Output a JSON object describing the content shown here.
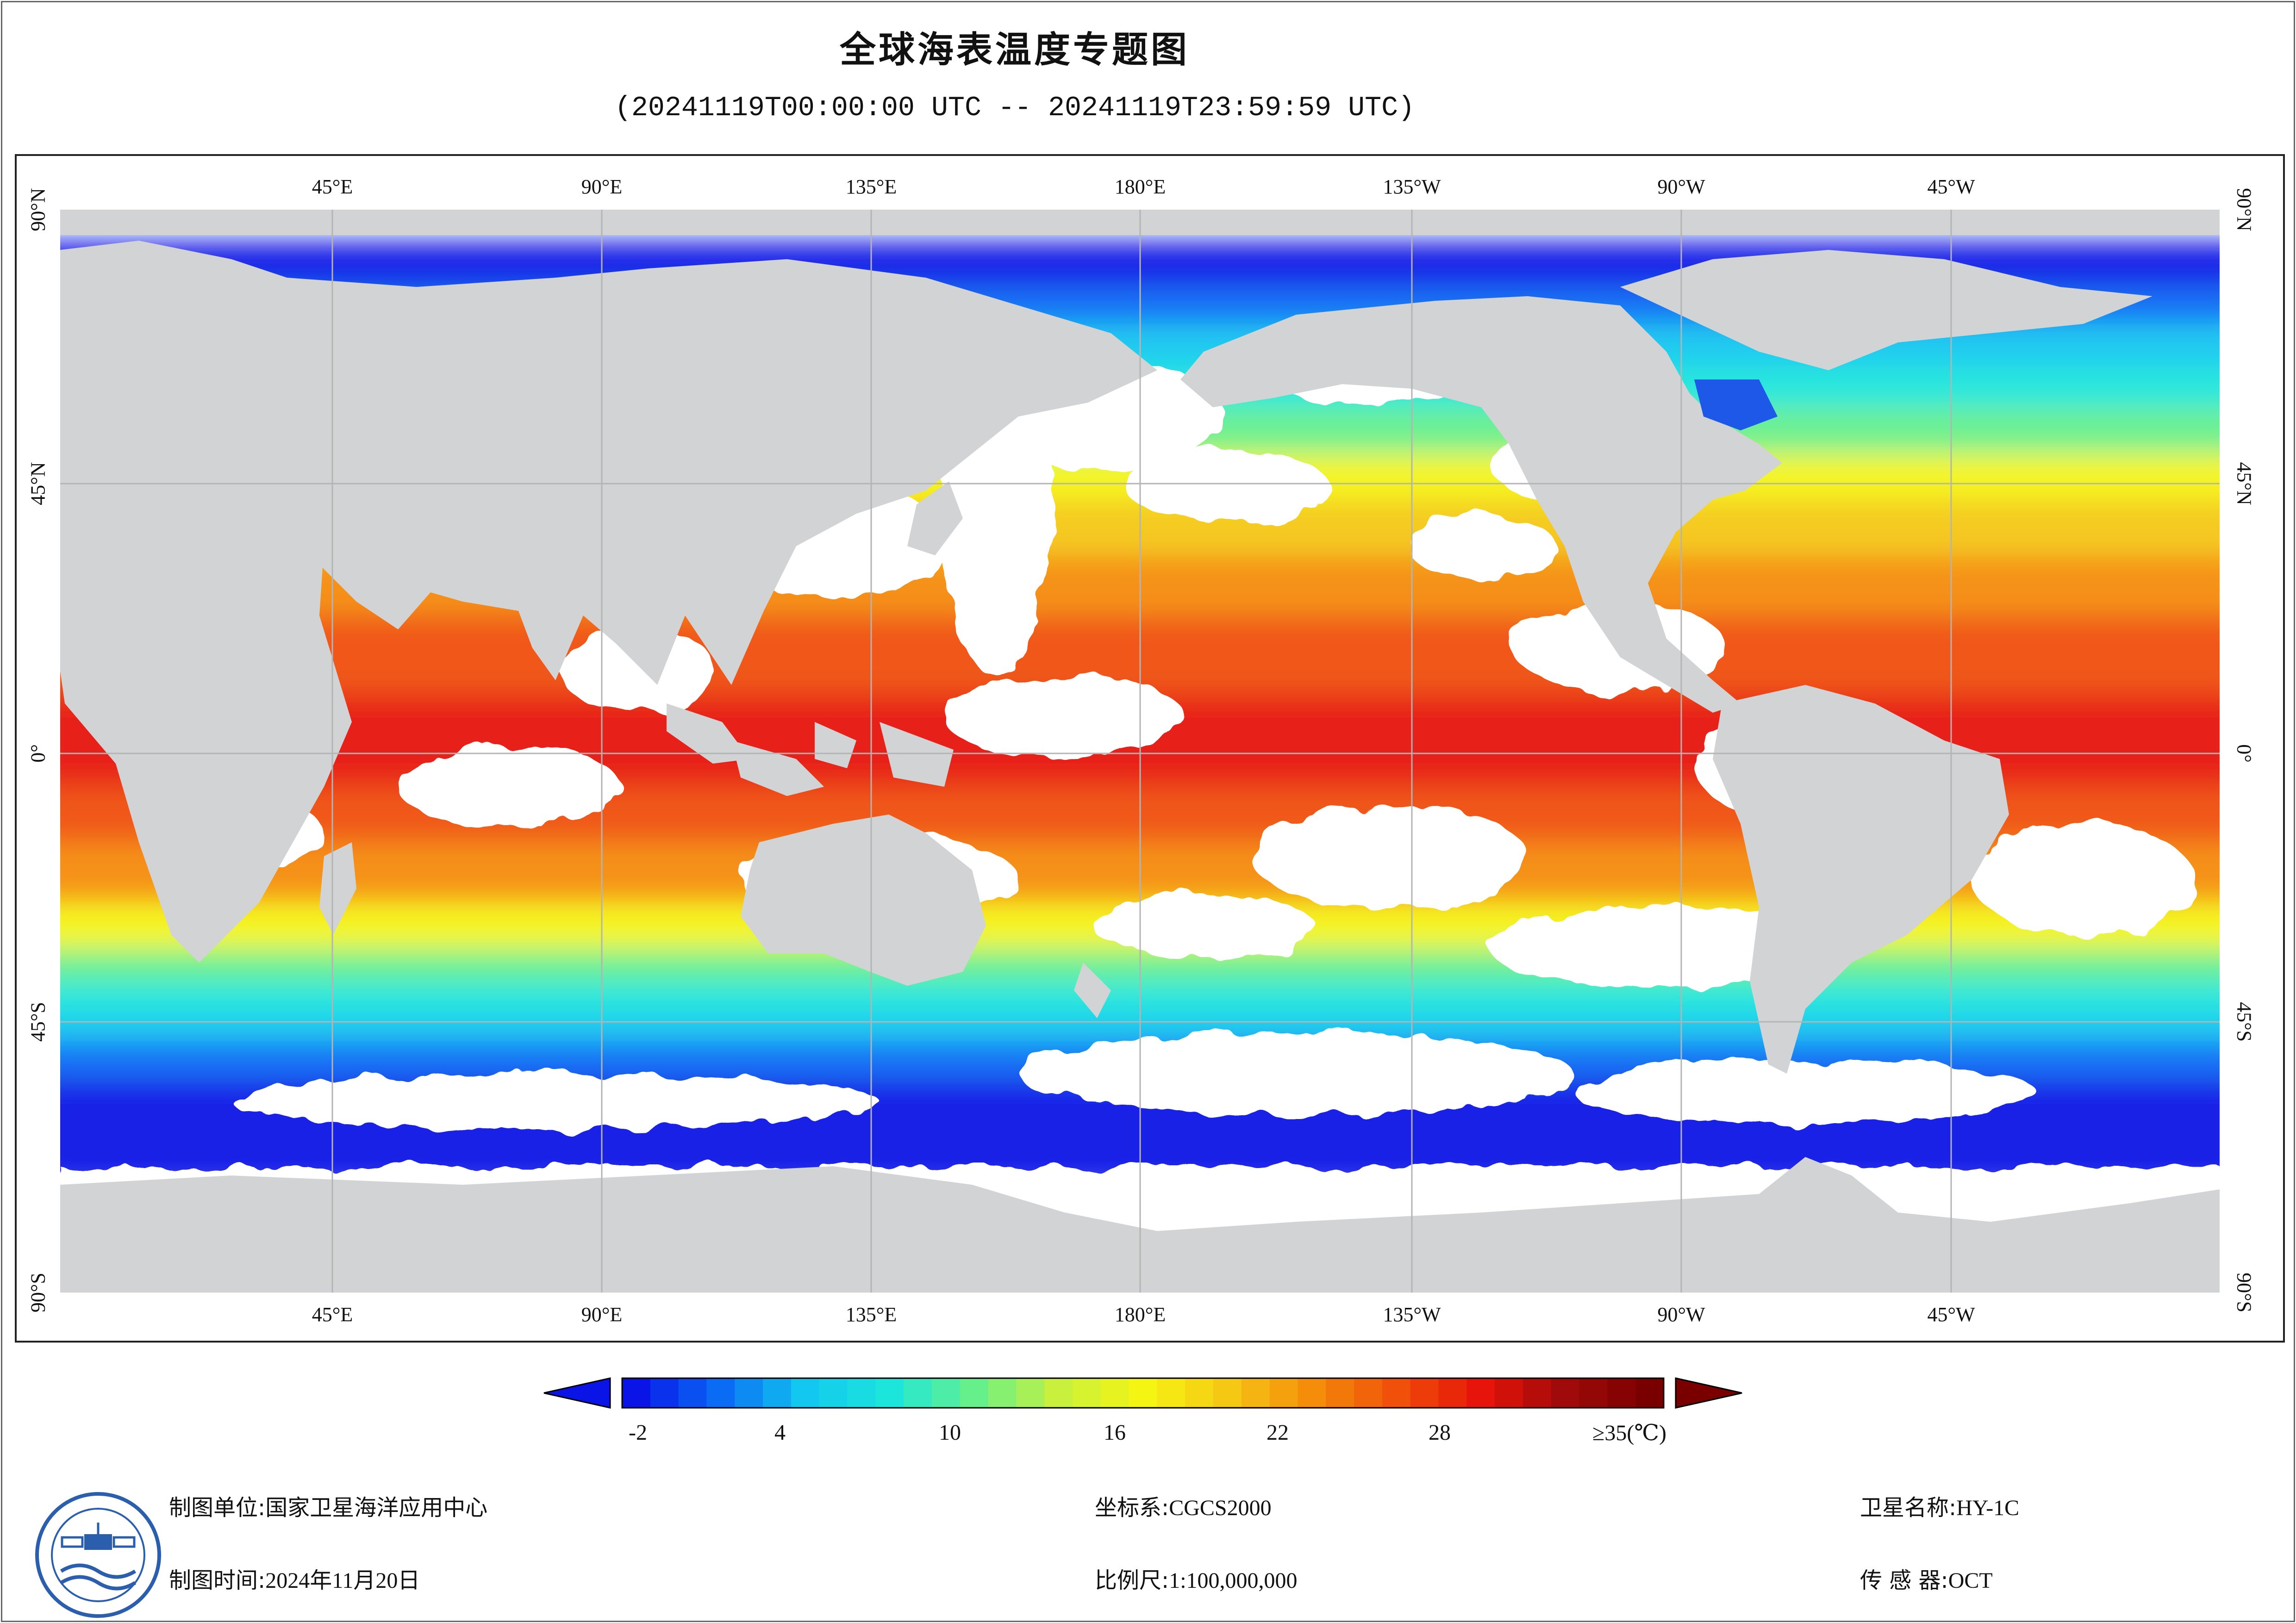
{
  "title": "全球海表温度专题图",
  "subtitle": "(20241119T00:00:00 UTC -- 20241119T23:59:59 UTC)",
  "map": {
    "lon_labels": [
      "45°E",
      "90°E",
      "135°E",
      "180°E",
      "135°W",
      "90°W",
      "45°W"
    ],
    "lat_labels": [
      "90°N",
      "45°N",
      "0°",
      "45°S",
      "90°S"
    ],
    "colors": {
      "land": "#d2d3d5",
      "no_data": "#ffffff",
      "grid": "#b4b4b4"
    }
  },
  "colorbar": {
    "ticks": [
      "-2",
      "4",
      "10",
      "16",
      "22",
      "28",
      "≥35(℃)"
    ],
    "tick_values": [
      -2,
      4,
      10,
      16,
      22,
      28,
      35
    ],
    "min": -2,
    "max": 35,
    "palette": [
      "#0a14e6",
      "#0a6cf5",
      "#12c8f0",
      "#1ce6dc",
      "#66f08c",
      "#c8f03c",
      "#f5f514",
      "#f5c814",
      "#f58c0a",
      "#f0500a",
      "#e6140a",
      "#a00a0a",
      "#7a0000"
    ],
    "under_color": "#0a14e6",
    "over_color": "#7a0000"
  },
  "info": {
    "unit_label": "制图单位:",
    "unit_value": "国家卫星海洋应用中心",
    "time_label": "制图时间:",
    "time_value": "2024年11月20日",
    "crs_label": "坐标系:",
    "crs_value": "CGCS2000",
    "scale_label": "比例尺:",
    "scale_value": "1:100,000,000",
    "sat_label": "卫星名称:",
    "sat_value": "HY-1C",
    "sensor_label": "传 感 器:",
    "sensor_value": "OCT"
  }
}
